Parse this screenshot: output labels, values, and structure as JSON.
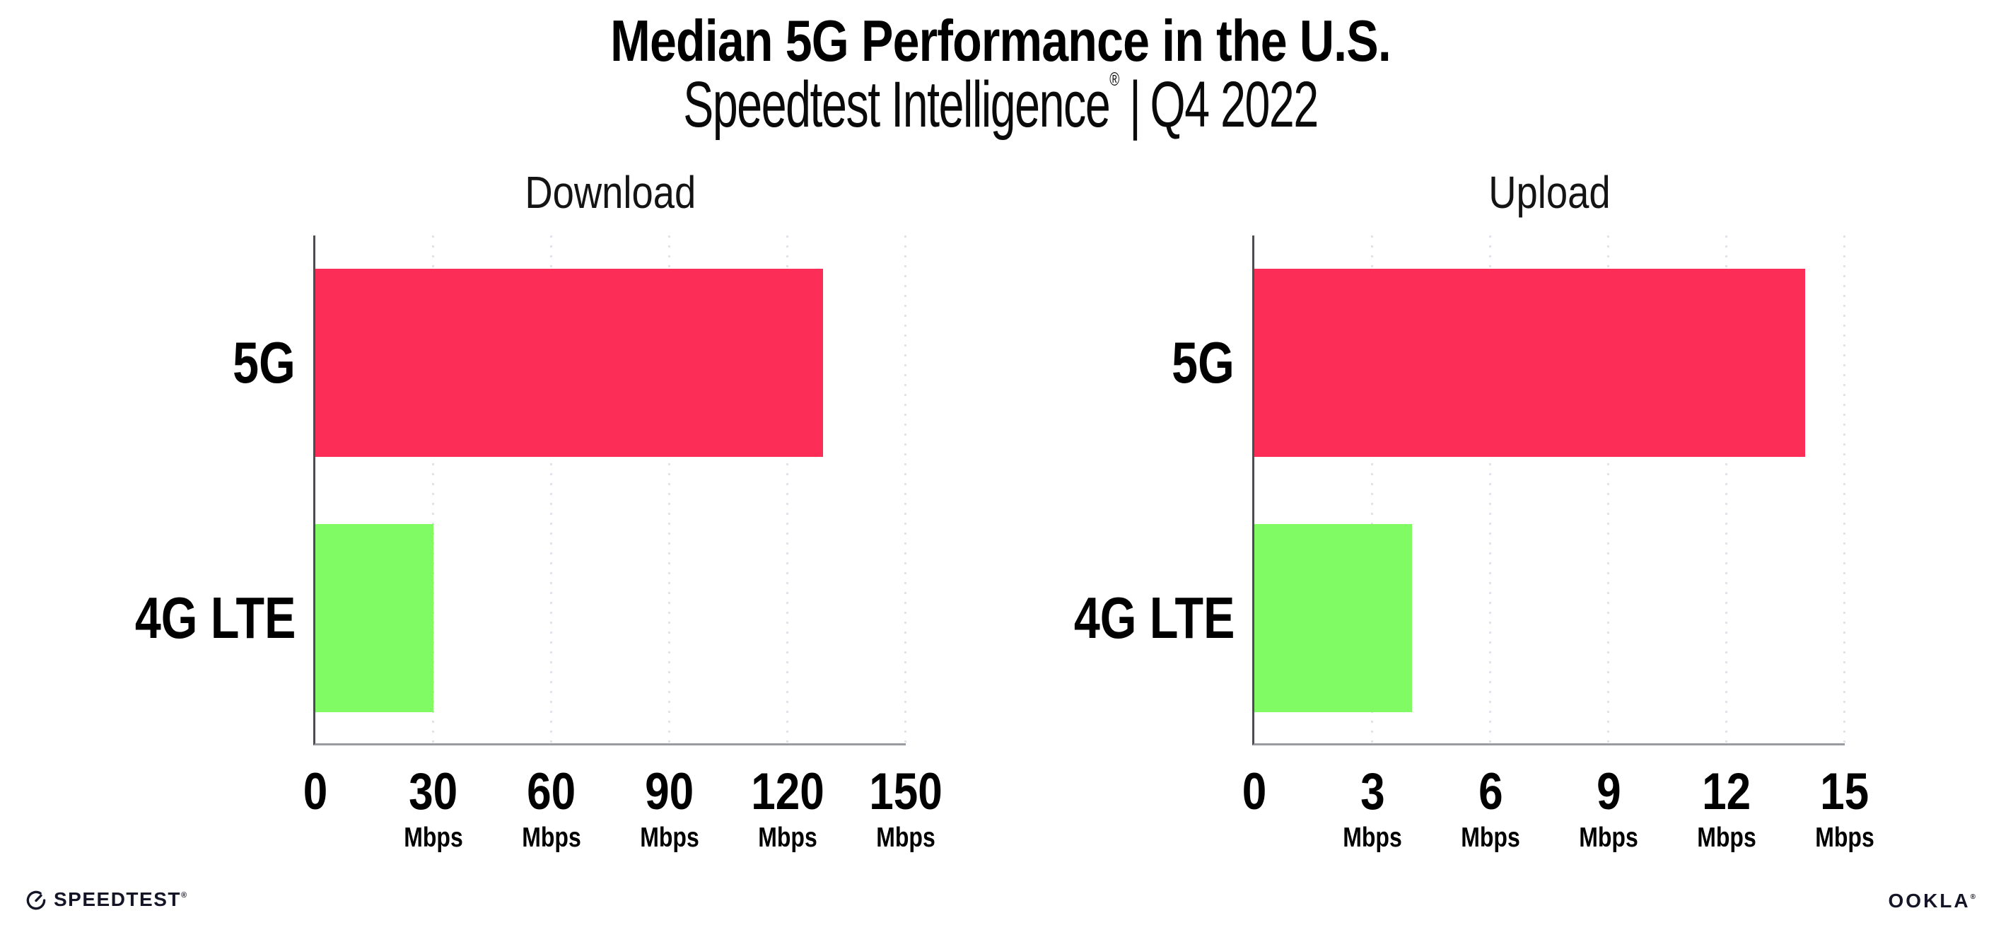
{
  "header": {
    "title": "Median 5G Performance in the U.S.",
    "subtitle_brand": "Speedtest Intelligence",
    "subtitle_reg": "®",
    "subtitle_separator": "|",
    "subtitle_period": "Q4 2022"
  },
  "colors": {
    "bar_5g": "#FC2D56",
    "bar_4g_lte": "#80FB64",
    "gridline": "#E2E2EC",
    "x_axis_line": "#9A9AA1",
    "y_axis_line": "#4C4C54",
    "text": "#000000",
    "logo_text": "#141526"
  },
  "chart_data": [
    {
      "type": "bar",
      "orientation": "horizontal",
      "title": "Download",
      "categories": [
        "5G",
        "4G LTE"
      ],
      "values": [
        129,
        30
      ],
      "unit": "Mbps",
      "xlim": [
        0,
        150
      ],
      "xticks": [
        0,
        30,
        60,
        90,
        120,
        150
      ],
      "bar_colors": [
        "#FC2D56",
        "#80FB64"
      ],
      "grid": "dotted-vertical",
      "legend": "none"
    },
    {
      "type": "bar",
      "orientation": "horizontal",
      "title": "Upload",
      "categories": [
        "5G",
        "4G LTE"
      ],
      "values": [
        14,
        4
      ],
      "unit": "Mbps",
      "xlim": [
        0,
        15
      ],
      "xticks": [
        0,
        3,
        6,
        9,
        12,
        15
      ],
      "bar_colors": [
        "#FC2D56",
        "#80FB64"
      ],
      "grid": "dotted-vertical",
      "legend": "none"
    }
  ],
  "footer": {
    "speedtest_text": "SPEEDTEST",
    "speedtest_reg": "®",
    "ookla_text": "OOKLA",
    "ookla_reg": "®"
  }
}
